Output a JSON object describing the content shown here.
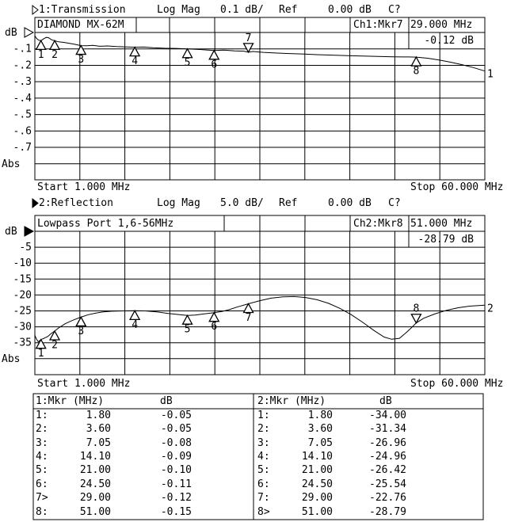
{
  "title_row_1": {
    "icon": "right-triangle-hollow",
    "channel": "1:Transmission",
    "format": "Log Mag",
    "scale": "0.1 dB/",
    "ref_label": "Ref",
    "ref_value": "0.00 dB",
    "cal_status": "C?"
  },
  "title_row_2": {
    "icon": "right-triangle-filled",
    "channel": "2:Reflection",
    "format": "Log Mag",
    "scale": "5.0 dB/",
    "ref_label": "Ref",
    "ref_value": "0.00 dB",
    "cal_status": "C?"
  },
  "chart1_header": {
    "readout_label": "Ch1:Mkr7",
    "readout_freq": "29.000 MHz",
    "readout_level": "-0.12 dB"
  },
  "chart2_header": {
    "readout_label": "Ch2:Mkr8",
    "readout_freq": "51.000 MHz",
    "readout_level": "-28.79 dB"
  },
  "axis_row_1": {
    "start": "Start 1.000 MHz",
    "stop": "Stop 60.000 MHz"
  },
  "axis_row_2": {
    "start": "Start 1.000 MHz",
    "stop": "Stop 60.000 MHz"
  },
  "marker_table": {
    "left": {
      "title": "1:Mkr (MHz)",
      "unit": "dB",
      "rows": [
        {
          "label": "1:",
          "freq": "1.80",
          "db": "-0.05"
        },
        {
          "label": "2:",
          "freq": "3.60",
          "db": "-0.05"
        },
        {
          "label": "3:",
          "freq": "7.05",
          "db": "-0.08"
        },
        {
          "label": "4:",
          "freq": "14.10",
          "db": "-0.09"
        },
        {
          "label": "5:",
          "freq": "21.00",
          "db": "-0.10"
        },
        {
          "label": "6:",
          "freq": "24.50",
          "db": "-0.11"
        },
        {
          "label": "7>",
          "freq": "29.00",
          "db": "-0.12"
        },
        {
          "label": "8:",
          "freq": "51.00",
          "db": "-0.15"
        }
      ]
    },
    "right": {
      "title": "2:Mkr (MHz)",
      "unit": "dB",
      "rows": [
        {
          "label": "1:",
          "freq": "1.80",
          "db": "-34.00"
        },
        {
          "label": "2:",
          "freq": "3.60",
          "db": "-31.34"
        },
        {
          "label": "3:",
          "freq": "7.05",
          "db": "-26.96"
        },
        {
          "label": "4:",
          "freq": "14.10",
          "db": "-24.96"
        },
        {
          "label": "5:",
          "freq": "21.00",
          "db": "-26.42"
        },
        {
          "label": "6:",
          "freq": "24.50",
          "db": "-25.54"
        },
        {
          "label": "7:",
          "freq": "29.00",
          "db": "-22.76"
        },
        {
          "label": "8>",
          "freq": "51.00",
          "db": "-28.79"
        }
      ]
    }
  },
  "chart_data": [
    {
      "type": "line",
      "name": "Channel 1 Transmission log magnitude trace",
      "title": "DIAMOND MX-62M",
      "x_unit": "MHz",
      "x_start": 1.0,
      "x_stop": 60.0,
      "y_unit_label": "dB",
      "y_bottom_label": "Abs",
      "trace_number": "1",
      "y_ref_db": 0.0,
      "y_db_per_div": 0.1,
      "grid": true,
      "y_tick_labels": [
        "-.1",
        "-.2",
        "-.3",
        "-.4",
        "-.5",
        "-.6",
        "-.7"
      ],
      "markers": [
        {
          "n": "1",
          "f": 1.8,
          "db": -0.05
        },
        {
          "n": "2",
          "f": 3.6,
          "db": -0.05
        },
        {
          "n": "3",
          "f": 7.05,
          "db": -0.08
        },
        {
          "n": "4",
          "f": 14.1,
          "db": -0.09
        },
        {
          "n": "5",
          "f": 21.0,
          "db": -0.1
        },
        {
          "n": "6",
          "f": 24.5,
          "db": -0.11
        },
        {
          "n": "7",
          "f": 29.0,
          "db": -0.12,
          "active": true
        },
        {
          "n": "8",
          "f": 51.0,
          "db": -0.15
        }
      ],
      "points": [
        [
          1,
          -0.02
        ],
        [
          1.2,
          -0.035
        ],
        [
          1.5,
          -0.047
        ],
        [
          1.8,
          -0.05
        ],
        [
          2.1,
          -0.04
        ],
        [
          2.5,
          -0.03
        ],
        [
          2.8,
          -0.032
        ],
        [
          3.2,
          -0.045
        ],
        [
          3.6,
          -0.05
        ],
        [
          4.1,
          -0.057
        ],
        [
          4.7,
          -0.06
        ],
        [
          5.4,
          -0.065
        ],
        [
          6.2,
          -0.072
        ],
        [
          7.05,
          -0.08
        ],
        [
          7.8,
          -0.081
        ],
        [
          8.6,
          -0.078
        ],
        [
          9.5,
          -0.084
        ],
        [
          10.5,
          -0.082
        ],
        [
          11.7,
          -0.086
        ],
        [
          13,
          -0.088
        ],
        [
          14.1,
          -0.09
        ],
        [
          15.3,
          -0.089
        ],
        [
          16.5,
          -0.093
        ],
        [
          18,
          -0.096
        ],
        [
          19.5,
          -0.097
        ],
        [
          21,
          -0.1
        ],
        [
          22.7,
          -0.104
        ],
        [
          24.5,
          -0.11
        ],
        [
          25.8,
          -0.107
        ],
        [
          27.2,
          -0.112
        ],
        [
          28.4,
          -0.114
        ],
        [
          29,
          -0.12
        ],
        [
          29.6,
          -0.116
        ],
        [
          31,
          -0.121
        ],
        [
          32.5,
          -0.125
        ],
        [
          34,
          -0.128
        ],
        [
          36,
          -0.131
        ],
        [
          38,
          -0.135
        ],
        [
          40,
          -0.138
        ],
        [
          42,
          -0.141
        ],
        [
          44,
          -0.144
        ],
        [
          46,
          -0.146
        ],
        [
          48,
          -0.148
        ],
        [
          50,
          -0.149
        ],
        [
          51,
          -0.15
        ],
        [
          52.5,
          -0.157
        ],
        [
          54,
          -0.168
        ],
        [
          55.5,
          -0.181
        ],
        [
          57,
          -0.196
        ],
        [
          58.5,
          -0.214
        ],
        [
          60,
          -0.235
        ]
      ]
    },
    {
      "type": "line",
      "name": "Channel 2 Reflection log magnitude trace",
      "title": "Lowpass Port 1,6-56MHz",
      "x_unit": "MHz",
      "x_start": 1.0,
      "x_stop": 60.0,
      "y_unit_label": "dB",
      "y_bottom_label": "Abs",
      "trace_number": "2",
      "y_ref_db": 0.0,
      "y_db_per_div": 5.0,
      "grid": true,
      "y_tick_labels": [
        "-5",
        "-10",
        "-15",
        "-20",
        "-25",
        "-30",
        "-35"
      ],
      "markers": [
        {
          "n": "1",
          "f": 1.8,
          "db": -34.0
        },
        {
          "n": "2",
          "f": 3.6,
          "db": -31.34
        },
        {
          "n": "3",
          "f": 7.05,
          "db": -26.96
        },
        {
          "n": "4",
          "f": 14.1,
          "db": -24.96
        },
        {
          "n": "5",
          "f": 21.0,
          "db": -26.42
        },
        {
          "n": "6",
          "f": 24.5,
          "db": -25.54
        },
        {
          "n": "7",
          "f": 29.0,
          "db": -22.76
        },
        {
          "n": "8",
          "f": 51.0,
          "db": -28.79,
          "active": true
        }
      ],
      "points": [
        [
          1,
          -32.6
        ],
        [
          1.2,
          -33.8
        ],
        [
          1.45,
          -34.7
        ],
        [
          1.8,
          -34.0
        ],
        [
          2.2,
          -33.6
        ],
        [
          2.7,
          -33.0
        ],
        [
          3.1,
          -32.2
        ],
        [
          3.6,
          -31.34
        ],
        [
          4.2,
          -30.2
        ],
        [
          5,
          -29.0
        ],
        [
          6,
          -27.9
        ],
        [
          7.05,
          -26.96
        ],
        [
          8,
          -26.2
        ],
        [
          9,
          -25.7
        ],
        [
          10,
          -25.3
        ],
        [
          11,
          -25.1
        ],
        [
          12.5,
          -25.0
        ],
        [
          14.1,
          -24.96
        ],
        [
          15.5,
          -25.0
        ],
        [
          17,
          -25.3
        ],
        [
          18.5,
          -25.8
        ],
        [
          20,
          -26.2
        ],
        [
          21,
          -26.42
        ],
        [
          22,
          -26.3
        ],
        [
          23,
          -26.0
        ],
        [
          24.5,
          -25.54
        ],
        [
          25.5,
          -25.2
        ],
        [
          26.5,
          -24.6
        ],
        [
          27.5,
          -23.8
        ],
        [
          29,
          -22.76
        ],
        [
          30.5,
          -21.8
        ],
        [
          32,
          -21.0
        ],
        [
          33.5,
          -20.6
        ],
        [
          35,
          -20.5
        ],
        [
          36.5,
          -20.8
        ],
        [
          38,
          -21.5
        ],
        [
          39.5,
          -22.6
        ],
        [
          41,
          -24.2
        ],
        [
          42.5,
          -26.2
        ],
        [
          44,
          -28.6
        ],
        [
          45.5,
          -31.2
        ],
        [
          46.8,
          -33.2
        ],
        [
          47.8,
          -33.9
        ],
        [
          48.8,
          -33.6
        ],
        [
          49.8,
          -31.6
        ],
        [
          50.5,
          -30.0
        ],
        [
          51,
          -28.79
        ],
        [
          52,
          -27.3
        ],
        [
          53.5,
          -25.9
        ],
        [
          55,
          -24.8
        ],
        [
          56.5,
          -24.0
        ],
        [
          58,
          -23.5
        ],
        [
          60,
          -23.2
        ]
      ]
    }
  ],
  "colors": {
    "foreground": "#000000",
    "background": "#ffffff"
  }
}
